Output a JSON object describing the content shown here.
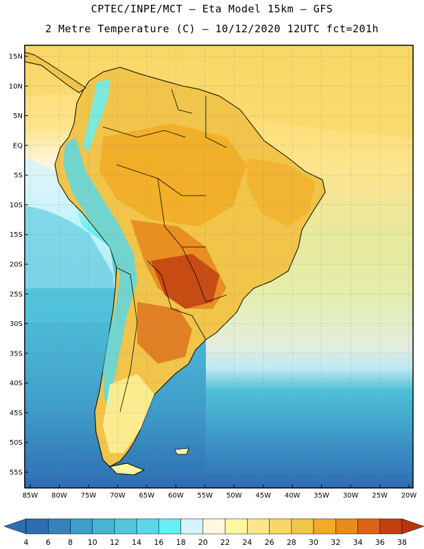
{
  "header": {
    "line1": "CPTEC/INPE/MCT –  Eta Model 15km – GFS",
    "line2": "2 Metre Temperature (C) – 10/12/2020 12UTC fct=201h"
  },
  "map": {
    "lat_labels": [
      "15N",
      "10N",
      "5N",
      "EQ",
      "5S",
      "10S",
      "15S",
      "20S",
      "25S",
      "30S",
      "35S",
      "40S",
      "45S",
      "50S",
      "55S"
    ],
    "lon_labels": [
      "85W",
      "80W",
      "75W",
      "70W",
      "65W",
      "60W",
      "55W",
      "50W",
      "45W",
      "40W",
      "35W",
      "30W",
      "25W",
      "20W"
    ]
  },
  "colorbar": {
    "labels": [
      "4",
      "6",
      "8",
      "10",
      "12",
      "14",
      "16",
      "18",
      "20",
      "22",
      "24",
      "26",
      "28",
      "30",
      "32",
      "34",
      "36",
      "38"
    ],
    "colors": [
      "#2d6db3",
      "#3583bd",
      "#3f9dc9",
      "#49b3d3",
      "#52c6dc",
      "#5ad8e5",
      "#66f0f5",
      "#d4f4fb",
      "#fff7e0",
      "#fff6a0",
      "#fde68a",
      "#f8d767",
      "#f1c44a",
      "#f1ab25",
      "#e88a1c",
      "#da6414",
      "#c14012"
    ],
    "low_arrow_color": "#2d6db3",
    "high_arrow_color": "#b8360f"
  }
}
